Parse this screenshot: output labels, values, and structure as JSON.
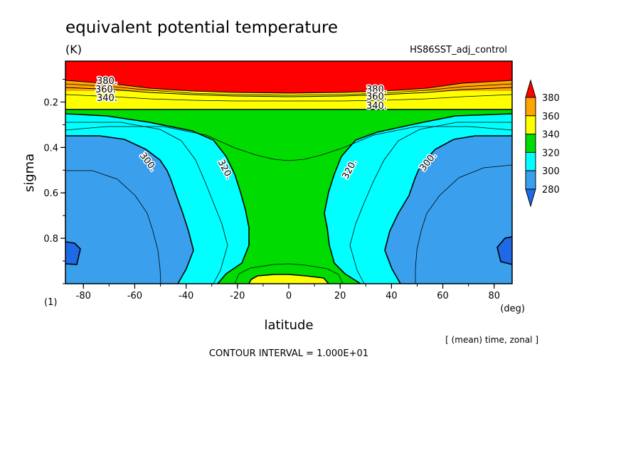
{
  "chart_data": {
    "type": "heatmap",
    "subtype": "filled-contour",
    "title": "equivalent potential temperature",
    "units": "(K)",
    "run_label": "HS86SST_adj_control",
    "xlabel": "latitude",
    "x_unit": "(deg)",
    "ylabel": "sigma",
    "y_unit": "(1)",
    "xlim": [
      -87,
      87
    ],
    "ylim": [
      1.0,
      0.02
    ],
    "y_inverted": true,
    "xticks": [
      -80,
      -60,
      -40,
      -20,
      0,
      20,
      40,
      60,
      80
    ],
    "yticks": [
      0.2,
      0.4,
      0.6,
      0.8
    ],
    "averaging_note": "[ (mean) time, zonal ]",
    "contour_interval_text": "CONTOUR INTERVAL = 1.000E+01",
    "colorbar": {
      "levels": [
        280,
        300,
        320,
        340,
        360,
        380
      ],
      "bands": [
        {
          "range": "<280",
          "color": "#1e6ae6"
        },
        {
          "range": "280-300",
          "color": "#3aa0ee"
        },
        {
          "range": "300-320",
          "color": "#00ffff"
        },
        {
          "range": "320-340",
          "color": "#00dc00"
        },
        {
          "range": "340-360",
          "color": "#ffff00"
        },
        {
          "range": "360-380",
          "color": "#ffa500"
        },
        {
          "range": ">380",
          "color": "#ff0000"
        }
      ]
    },
    "contour_labels": [
      {
        "text": "380.",
        "lat": -75,
        "sigma": 0.115
      },
      {
        "text": "360.",
        "lat": -75,
        "sigma": 0.135
      },
      {
        "text": "340.",
        "lat": -72,
        "sigma": 0.165
      },
      {
        "text": "380.",
        "lat": 37,
        "sigma": 0.115
      },
      {
        "text": "360.",
        "lat": 37,
        "sigma": 0.135
      },
      {
        "text": "340.",
        "lat": 37,
        "sigma": 0.19
      },
      {
        "text": "300.",
        "lat": -58,
        "sigma": 0.46
      },
      {
        "text": "320.",
        "lat": -27,
        "sigma": 0.49
      },
      {
        "text": "320.",
        "lat": 26,
        "sigma": 0.49
      },
      {
        "text": "300.",
        "lat": 56,
        "sigma": 0.46
      }
    ],
    "contour_levels_shown": [
      {
        "level": 280,
        "sigma_range": [
          0.81,
          0.9
        ],
        "lat_extent": "poleward of ±83"
      },
      {
        "level": 300,
        "profile": [
          {
            "sigma": 0.35,
            "lat": -75
          },
          {
            "sigma": 0.4,
            "lat": -63
          },
          {
            "sigma": 0.5,
            "lat": -55
          },
          {
            "sigma": 0.6,
            "lat": -51
          },
          {
            "sigma": 0.7,
            "lat": -47
          },
          {
            "sigma": 0.85,
            "lat": -42
          },
          {
            "sigma": 1.0,
            "lat": -47
          }
        ]
      },
      {
        "level": 320,
        "profile": [
          {
            "sigma": 0.22,
            "lat": -60
          },
          {
            "sigma": 0.3,
            "lat": -42
          },
          {
            "sigma": 0.4,
            "lat": -35
          },
          {
            "sigma": 0.5,
            "lat": -29
          },
          {
            "sigma": 0.6,
            "lat": -26
          },
          {
            "sigma": 0.7,
            "lat": -23
          },
          {
            "sigma": 0.8,
            "lat": -21
          },
          {
            "sigma": 0.9,
            "lat": -20
          },
          {
            "sigma": 1.0,
            "lat": -31
          }
        ]
      },
      {
        "level": 340,
        "sigma_tropopause": 0.21,
        "near_surface_equator": {
          "lat_range": [
            -20,
            18
          ],
          "sigma_top": 0.95
        }
      },
      {
        "level": 360,
        "sigma": 0.125
      },
      {
        "level": 380,
        "sigma": 0.115
      }
    ]
  }
}
